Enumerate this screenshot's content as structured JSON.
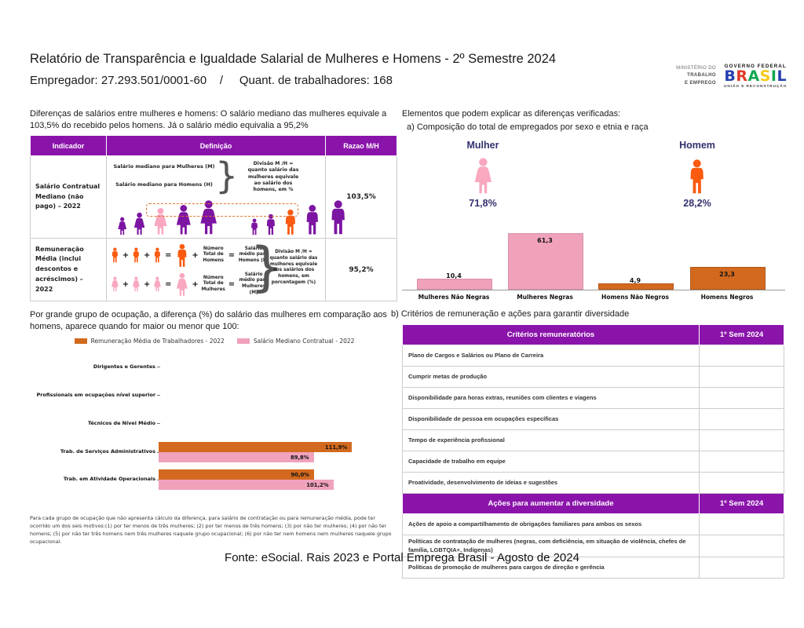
{
  "colors": {
    "purple_header": "#8A14AA",
    "purple_person": "#7C15A2",
    "pink_person": "#F9A8C0",
    "pink_bar": "#F0A2BB",
    "orange_person": "#FB5B10",
    "orange_bar": "#D2691E",
    "navy": "#32316F",
    "border": "#CCCCCC"
  },
  "header": {
    "title": "Relatório de Transparência e Igualdade Salarial de Mulheres e Homens - 2º Semestre 2024",
    "subtitle": "Empregador: 27.293.501/0001-60    /     Quant. de trabalhadores: 168",
    "ministry": {
      "l1": "MINISTÉRIO DO",
      "l2": "TRABALHO",
      "l3": "E EMPREGO"
    },
    "gov": {
      "top": "GOVERNO FEDERAL",
      "bottom": "UNIÃO E RECONSTRUÇÃO",
      "letters": [
        {
          "ch": "B",
          "color": "#2640AE"
        },
        {
          "ch": "R",
          "color": "#E03A26"
        },
        {
          "ch": "A",
          "color": "#12A850"
        },
        {
          "ch": "S",
          "color": "#F6C915"
        },
        {
          "ch": "I",
          "color": "#12A850"
        },
        {
          "ch": "L",
          "color": "#2640AE"
        }
      ]
    }
  },
  "left": {
    "intro": "Diferenças de salários entre mulheres e homens: O salário mediano das mulheres equivale a 103,5% do recebido pelos homens. Já o salário médio equivalia a 95,2%",
    "table": {
      "headers": [
        "Indicador",
        "Definição",
        "Razao M/H"
      ],
      "ops": {
        "plus": "+",
        "eq": "="
      },
      "rows": [
        {
          "indicator": "Salário Contratual Mediano (não pago) – 2022",
          "def_line1": "Salário mediano para Mulheres (M)",
          "def_line2": "Salário mediano para Homens (H)",
          "note": "Divisão M /H = quanto salário das mulheres equivale ao salário dos homens, em %",
          "ratio": "103,5%"
        },
        {
          "indicator": "Remuneração Média (inclui descontos e acréscimos) – 2022",
          "men_total": "Número Total de Homens",
          "men_result": "Salário médio para Homens (H)",
          "women_total": "Número Total de Mulheres",
          "women_result": "Salário médio para Mulheres (M)",
          "note": "Divisão M /H = quanto salário das mulheres equivale aos salários dos homens, em porcentagem (%)",
          "ratio": "95,2%"
        }
      ]
    },
    "occupation_intro": "Por grande grupo de ocupação, a diferença (%) do salário das mulheres em comparação aos homens, aparece quando for maior ou menor que 100:",
    "footnote": "Para cada grupo de ocupação que não apresenta cálculo da diferença, para salário de contratação ou para remuneração média, pode ter ocorrido um dos seis motivos:(1) por ter menos de três mulheres; (2) por ter menos de três homens; (3) por não ter mulheres; (4) por não ter homens; (5) por não ter três homens nem três mulheres naquele grupo ocupacional; (6) por não ter nem homens nem mulheres naquele grupo ocupacional."
  },
  "right": {
    "explain": "Elementos que podem explicar as diferenças verificadas:",
    "section_a": "a) Composição do total de empregados por sexo e etnia e raça",
    "gender": {
      "woman_label": "Mulher",
      "woman_pct": "71,8%",
      "man_label": "Homem",
      "man_pct": "28,2%"
    },
    "section_b": "b) Critérios de remuneração e ações para garantir diversidade",
    "criteria": {
      "header": [
        "Critérios remuneratórios",
        "1º Sem 2024"
      ],
      "rows": [
        "Plano de Cargos e Salários ou Plano de Carreira",
        "Cumprir metas de produção",
        "Disponibilidade para horas extras, reuniões com clientes e viagens",
        "Disponibilidade de pessoa em ocupações específicas",
        "Tempo de experiência profissional",
        "Capacidade de trabalho em equipe",
        "Proatividade, desenvolvimento de ideias e sugestões"
      ],
      "header2": [
        "Ações para aumentar a diversidade",
        "1º Sem 2024"
      ],
      "rows2": [
        "Ações de apoio a compartilhamento de obrigações familiares para ambos os sexos",
        "Políticas de contratação de mulheres (negras, com deficiência, em situação de violência, chefes de família, LGBTQIA+, Indígenas)",
        "Políticas de promoção de mulheres para cargos de direção e gerência"
      ]
    }
  },
  "chart_data": [
    {
      "type": "pictogram",
      "title": "a) Composição do total de empregados por sexo e etnia e raça",
      "items": [
        {
          "label": "Mulher",
          "pct": 71.8,
          "pct_label": "71,8%"
        },
        {
          "label": "Homem",
          "pct": 28.2,
          "pct_label": "28,2%"
        }
      ]
    },
    {
      "type": "bar",
      "title": "a) Composição do total de empregados por sexo e etnia e raça",
      "categories": [
        "Mulheres Não Negras",
        "Mulheres Negras",
        "Homens Não Negros",
        "Homens Negros"
      ],
      "values": [
        10.4,
        61.3,
        4.9,
        23.3
      ],
      "labels": [
        "10,4",
        "61,3",
        "4,9",
        "23,3"
      ],
      "bar_colors": [
        "#F0A2BB",
        "#F0A2BB",
        "#D2691E",
        "#D2691E"
      ],
      "bar_edges": [
        "#d98fac",
        "#d98fac",
        "#b4571a",
        "#b4571a"
      ],
      "ylim": [
        0,
        65
      ],
      "grid": false,
      "legend_position": "none"
    },
    {
      "type": "bar-horizontal",
      "title": "Diferença (%) do salário das mulheres em comparação aos homens, por grande grupo de ocupação",
      "categories": [
        "Dirigentes e Gerentes",
        "Profissionais em ocupações nível superior",
        "Técnicos de Nível Médio",
        "Trab. de Serviços Administrativos",
        "Trab. em Atividade Operacionais"
      ],
      "series": [
        {
          "name": "Remuneração Média de Trabalhadores - 2022",
          "color": "#D2691E",
          "values": [
            null,
            null,
            null,
            111.9,
            90.0
          ],
          "labels": [
            "",
            "",
            "",
            "111,9%",
            "90,0%"
          ]
        },
        {
          "name": "Salário Mediano Contratual - 2022",
          "color": "#F0A2BB",
          "values": [
            null,
            null,
            null,
            89.8,
            101.2
          ],
          "labels": [
            "",
            "",
            "",
            "89,8%",
            "101,2%"
          ]
        }
      ],
      "xlim": [
        0,
        120
      ],
      "legend_position": "top"
    }
  ],
  "footer": "Fonte: eSocial. Rais 2023 e Portal Emprega Brasil - Agosto de 2024"
}
